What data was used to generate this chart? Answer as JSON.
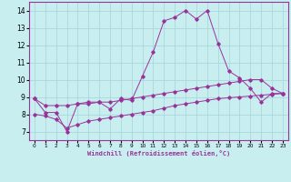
{
  "xlabel": "Windchill (Refroidissement éolien,°C)",
  "xlim": [
    -0.5,
    23.5
  ],
  "ylim": [
    6.5,
    14.5
  ],
  "yticks": [
    7,
    8,
    9,
    10,
    11,
    12,
    13,
    14
  ],
  "xticks": [
    0,
    1,
    2,
    3,
    4,
    5,
    6,
    7,
    8,
    9,
    10,
    11,
    12,
    13,
    14,
    15,
    16,
    17,
    18,
    19,
    20,
    21,
    22,
    23
  ],
  "bg_color": "#c8eef0",
  "grid_color": "#a8d8dc",
  "line_color": "#993399",
  "line1_y": [
    8.9,
    8.1,
    8.1,
    7.0,
    8.6,
    8.6,
    8.7,
    8.3,
    8.9,
    8.8,
    10.2,
    11.6,
    13.4,
    13.6,
    14.0,
    13.5,
    14.0,
    12.1,
    10.5,
    10.1,
    9.5,
    8.7,
    9.2,
    9.2
  ],
  "line2_y": [
    8.9,
    8.5,
    8.5,
    8.5,
    8.6,
    8.7,
    8.7,
    8.7,
    8.8,
    8.9,
    9.0,
    9.1,
    9.2,
    9.3,
    9.4,
    9.5,
    9.6,
    9.7,
    9.8,
    9.9,
    10.0,
    10.0,
    9.5,
    9.2
  ],
  "line3_y": [
    8.0,
    7.9,
    7.7,
    7.2,
    7.4,
    7.6,
    7.7,
    7.8,
    7.9,
    8.0,
    8.1,
    8.2,
    8.35,
    8.5,
    8.6,
    8.7,
    8.8,
    8.9,
    8.95,
    9.0,
    9.05,
    9.1,
    9.15,
    9.2
  ]
}
